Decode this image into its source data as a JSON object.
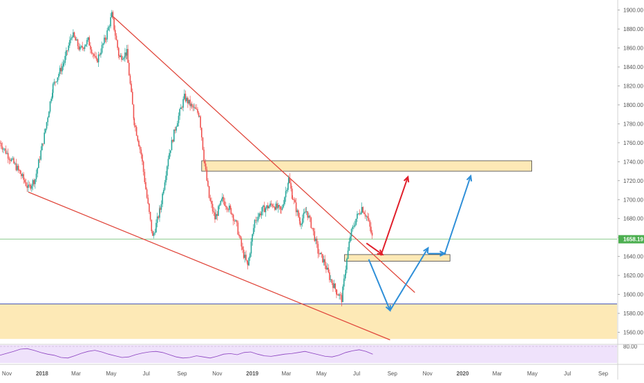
{
  "colors": {
    "up": "#26a69a",
    "down": "#ef5350",
    "wedge": "#e0473c",
    "zone_fill": "#fde9b6",
    "zone_stroke": "#444444",
    "rsi_bg": "#efe2fb",
    "rsi_line": "#8a3fbf",
    "price_line": "#4caf50",
    "support_line": "#3f51b5",
    "arrow_red": "#e01e2a",
    "arrow_blue": "#2f8fd8"
  },
  "chart_data": {
    "type": "candlestick",
    "title": "",
    "xlabel": "",
    "ylabel": "",
    "grid": false,
    "ylim": [
      1548,
      1907
    ],
    "xlim": [
      "2017-10-20",
      "2020-09-25"
    ],
    "current_price": 1658.19,
    "y_ticks": [
      "1900.00",
      "1880.00",
      "1860.00",
      "1840.00",
      "1820.00",
      "1800.00",
      "1780.00",
      "1760.00",
      "1740.00",
      "1720.00",
      "1700.00",
      "1680.00",
      "1660.00",
      "1640.00",
      "1620.00",
      "1600.00",
      "1580.00",
      "1560.00"
    ],
    "x_ticks": [
      {
        "label": "Nov",
        "date": "2017-11-01"
      },
      {
        "label": "2018",
        "date": "2018-01-01"
      },
      {
        "label": "Mar",
        "date": "2018-03-01"
      },
      {
        "label": "May",
        "date": "2018-05-01"
      },
      {
        "label": "Jul",
        "date": "2018-07-01"
      },
      {
        "label": "Sep",
        "date": "2018-09-01"
      },
      {
        "label": "Nov",
        "date": "2018-11-01"
      },
      {
        "label": "2019",
        "date": "2019-01-01"
      },
      {
        "label": "Mar",
        "date": "2019-03-01"
      },
      {
        "label": "May",
        "date": "2019-05-01"
      },
      {
        "label": "Jul",
        "date": "2019-07-01"
      },
      {
        "label": "Sep",
        "date": "2019-09-01"
      },
      {
        "label": "Nov",
        "date": "2019-11-01"
      },
      {
        "label": "2020",
        "date": "2020-01-01"
      },
      {
        "label": "Mar",
        "date": "2020-03-01"
      },
      {
        "label": "May",
        "date": "2020-05-01"
      },
      {
        "label": "Jul",
        "date": "2020-07-01"
      },
      {
        "label": "Sep",
        "date": "2020-09-01"
      }
    ],
    "price_path": [
      [
        "2017-10-20",
        1760
      ],
      [
        "2017-11-05",
        1745
      ],
      [
        "2017-11-22",
        1730
      ],
      [
        "2017-12-08",
        1712
      ],
      [
        "2017-12-20",
        1722
      ],
      [
        "2018-01-05",
        1768
      ],
      [
        "2018-01-20",
        1820
      ],
      [
        "2018-02-08",
        1845
      ],
      [
        "2018-02-22",
        1875
      ],
      [
        "2018-03-08",
        1858
      ],
      [
        "2018-03-22",
        1868
      ],
      [
        "2018-04-05",
        1845
      ],
      [
        "2018-04-22",
        1872
      ],
      [
        "2018-05-02",
        1895
      ],
      [
        "2018-05-15",
        1850
      ],
      [
        "2018-05-28",
        1855
      ],
      [
        "2018-06-10",
        1782
      ],
      [
        "2018-06-22",
        1748
      ],
      [
        "2018-07-02",
        1702
      ],
      [
        "2018-07-12",
        1660
      ],
      [
        "2018-07-25",
        1690
      ],
      [
        "2018-08-08",
        1745
      ],
      [
        "2018-08-22",
        1780
      ],
      [
        "2018-09-05",
        1808
      ],
      [
        "2018-09-18",
        1798
      ],
      [
        "2018-10-01",
        1790
      ],
      [
        "2018-10-10",
        1738
      ],
      [
        "2018-10-18",
        1702
      ],
      [
        "2018-10-28",
        1680
      ],
      [
        "2018-11-10",
        1700
      ],
      [
        "2018-11-25",
        1688
      ],
      [
        "2018-12-05",
        1672
      ],
      [
        "2018-12-15",
        1645
      ],
      [
        "2018-12-24",
        1630
      ],
      [
        "2019-01-05",
        1678
      ],
      [
        "2019-01-20",
        1690
      ],
      [
        "2019-02-05",
        1695
      ],
      [
        "2019-02-20",
        1688
      ],
      [
        "2019-03-05",
        1722
      ],
      [
        "2019-03-12",
        1702
      ],
      [
        "2019-03-25",
        1676
      ],
      [
        "2019-04-05",
        1688
      ],
      [
        "2019-04-15",
        1670
      ],
      [
        "2019-04-25",
        1645
      ],
      [
        "2019-05-05",
        1635
      ],
      [
        "2019-05-15",
        1618
      ],
      [
        "2019-05-28",
        1602
      ],
      [
        "2019-06-05",
        1595
      ],
      [
        "2019-06-12",
        1628
      ],
      [
        "2019-06-20",
        1662
      ],
      [
        "2019-06-30",
        1680
      ],
      [
        "2019-07-10",
        1692
      ],
      [
        "2019-07-20",
        1680
      ],
      [
        "2019-07-29",
        1658
      ]
    ],
    "rsi": {
      "ylim": [
        20,
        85
      ],
      "y_ticks": [
        "80.00"
      ],
      "values": [
        48,
        55,
        62,
        70,
        72,
        66,
        58,
        52,
        48,
        40,
        38,
        46,
        55,
        62,
        66,
        60,
        52,
        46,
        40,
        42,
        50,
        56,
        60,
        62,
        58,
        50,
        42,
        38,
        40,
        46,
        42,
        38,
        44,
        52,
        54,
        50,
        58,
        60,
        52,
        46,
        44,
        48,
        52,
        54,
        58,
        62,
        56,
        50,
        44,
        42,
        48,
        58,
        64,
        68,
        62,
        52
      ]
    },
    "annotations": {
      "wedge_upper": [
        [
          "2018-05-01",
          1895
        ],
        [
          "2019-10-10",
          1602
        ]
      ],
      "wedge_lower": [
        [
          "2017-12-08",
          1708
        ],
        [
          "2019-08-28",
          1552
        ]
      ],
      "resistance_zone": {
        "x": [
          "2018-10-05",
          "2020-04-30"
        ],
        "y": [
          1730,
          1741
        ]
      },
      "support_zone": {
        "x": [
          "2019-06-10",
          "2019-12-10"
        ],
        "y": [
          1635,
          1642
        ]
      },
      "demand_zone": {
        "y": [
          1553,
          1590
        ]
      },
      "support_line": 1590,
      "red_arrows": [
        {
          "from": [
            "2019-07-18",
            1654
          ],
          "to": [
            "2019-08-15",
            1642
          ],
          "head": true
        },
        {
          "from": [
            "2019-08-12",
            1641
          ],
          "to": [
            "2019-09-28",
            1724
          ],
          "head": true
        }
      ],
      "blue_arrows": [
        {
          "from": [
            "2019-07-22",
            1637
          ],
          "to": [
            "2019-08-28",
            1583
          ],
          "head": true
        },
        {
          "from": [
            "2019-08-28",
            1583
          ],
          "to": [
            "2019-11-02",
            1649
          ],
          "head": true
        },
        {
          "from": [
            "2019-11-02",
            1643
          ],
          "to": [
            "2019-12-01",
            1643
          ],
          "head": true
        },
        {
          "from": [
            "2019-12-01",
            1643
          ],
          "to": [
            "2020-01-15",
            1725
          ],
          "head": true
        }
      ]
    }
  }
}
